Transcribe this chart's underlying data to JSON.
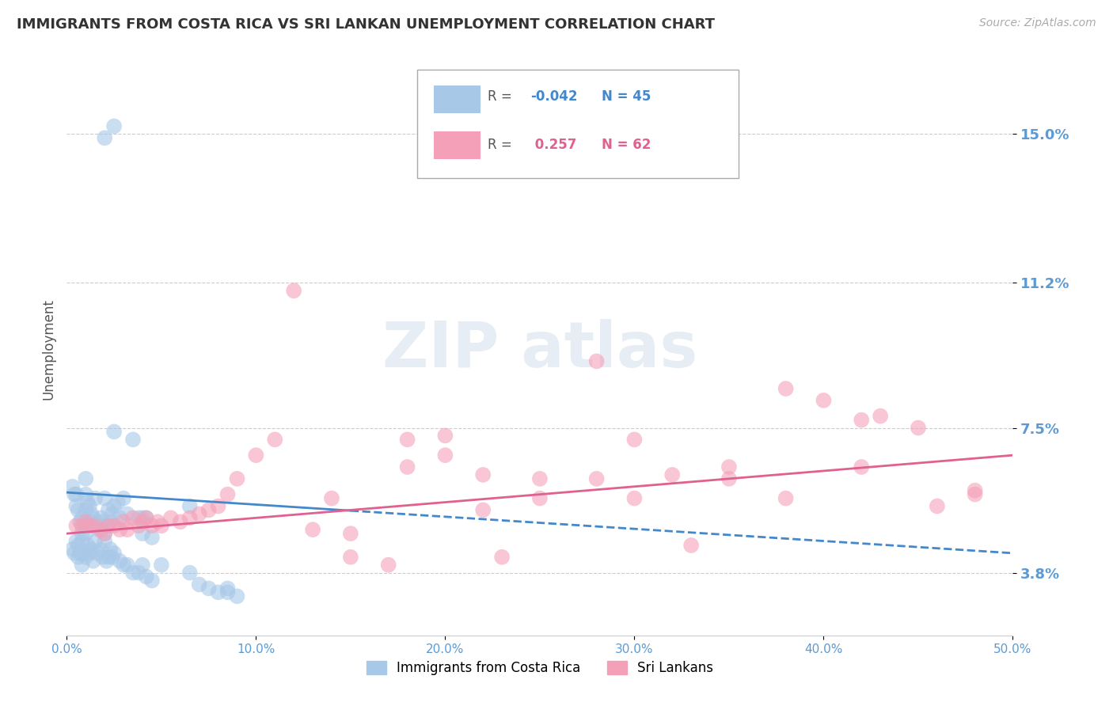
{
  "title": "IMMIGRANTS FROM COSTA RICA VS SRI LANKAN UNEMPLOYMENT CORRELATION CHART",
  "source": "Source: ZipAtlas.com",
  "xlabel": "",
  "ylabel": "Unemployment",
  "xlim": [
    0.0,
    0.5
  ],
  "ylim": [
    0.022,
    0.168
  ],
  "yticks": [
    0.038,
    0.075,
    0.112,
    0.15
  ],
  "ytick_labels": [
    "3.8%",
    "7.5%",
    "11.2%",
    "15.0%"
  ],
  "xticks": [
    0.0,
    0.1,
    0.2,
    0.3,
    0.4,
    0.5
  ],
  "xtick_labels": [
    "0.0%",
    "10.0%",
    "20.0%",
    "30.0%",
    "40.0%",
    "50.0%"
  ],
  "blue_color": "#a8c8e8",
  "pink_color": "#f4a0b8",
  "blue_line_color": "#4488cc",
  "pink_line_color": "#e06090",
  "axis_label_color": "#5b9bd5",
  "grid_color": "#cccccc",
  "blue_scatter_x": [
    0.02,
    0.025,
    0.003,
    0.004,
    0.005,
    0.005,
    0.006,
    0.007,
    0.008,
    0.008,
    0.009,
    0.01,
    0.01,
    0.01,
    0.011,
    0.012,
    0.012,
    0.013,
    0.014,
    0.015,
    0.015,
    0.016,
    0.017,
    0.018,
    0.019,
    0.02,
    0.02,
    0.021,
    0.022,
    0.023,
    0.024,
    0.025,
    0.025,
    0.027,
    0.028,
    0.03,
    0.032,
    0.035,
    0.038,
    0.04,
    0.04,
    0.042,
    0.045,
    0.065,
    0.085
  ],
  "blue_scatter_y": [
    0.149,
    0.152,
    0.06,
    0.058,
    0.058,
    0.055,
    0.054,
    0.051,
    0.052,
    0.048,
    0.05,
    0.062,
    0.058,
    0.054,
    0.056,
    0.055,
    0.051,
    0.053,
    0.052,
    0.057,
    0.05,
    0.051,
    0.049,
    0.052,
    0.051,
    0.057,
    0.048,
    0.05,
    0.054,
    0.051,
    0.053,
    0.074,
    0.055,
    0.056,
    0.052,
    0.057,
    0.053,
    0.072,
    0.052,
    0.052,
    0.048,
    0.052,
    0.047,
    0.055,
    0.034
  ],
  "blue_scatter_x2": [
    0.003,
    0.004,
    0.005,
    0.006,
    0.006,
    0.007,
    0.008,
    0.008,
    0.009,
    0.01,
    0.01,
    0.011,
    0.012,
    0.013,
    0.014,
    0.015,
    0.016,
    0.018,
    0.019,
    0.02,
    0.021,
    0.022,
    0.023,
    0.024,
    0.025,
    0.028,
    0.03,
    0.032,
    0.035,
    0.038,
    0.04,
    0.042,
    0.045,
    0.05,
    0.065,
    0.07,
    0.075,
    0.08,
    0.085,
    0.09
  ],
  "blue_scatter_y2": [
    0.044,
    0.043,
    0.046,
    0.045,
    0.042,
    0.043,
    0.046,
    0.04,
    0.043,
    0.048,
    0.042,
    0.045,
    0.043,
    0.044,
    0.041,
    0.046,
    0.043,
    0.044,
    0.042,
    0.046,
    0.041,
    0.042,
    0.044,
    0.042,
    0.043,
    0.041,
    0.04,
    0.04,
    0.038,
    0.038,
    0.04,
    0.037,
    0.036,
    0.04,
    0.038,
    0.035,
    0.034,
    0.033,
    0.033,
    0.032
  ],
  "pink_scatter_x": [
    0.005,
    0.008,
    0.01,
    0.012,
    0.015,
    0.018,
    0.02,
    0.022,
    0.025,
    0.028,
    0.03,
    0.032,
    0.035,
    0.038,
    0.04,
    0.042,
    0.045,
    0.048,
    0.05,
    0.055,
    0.06,
    0.065,
    0.07,
    0.075,
    0.08,
    0.085,
    0.09,
    0.1,
    0.11,
    0.12,
    0.13,
    0.14,
    0.15,
    0.18,
    0.2,
    0.22,
    0.25,
    0.28,
    0.3,
    0.32,
    0.35,
    0.38,
    0.4,
    0.42,
    0.45,
    0.2,
    0.25,
    0.3,
    0.35,
    0.18,
    0.22,
    0.15,
    0.17,
    0.23,
    0.33,
    0.43,
    0.48,
    0.38,
    0.28,
    0.42,
    0.48,
    0.46
  ],
  "pink_scatter_y": [
    0.05,
    0.05,
    0.051,
    0.05,
    0.05,
    0.049,
    0.048,
    0.05,
    0.05,
    0.049,
    0.051,
    0.049,
    0.052,
    0.05,
    0.051,
    0.052,
    0.05,
    0.051,
    0.05,
    0.052,
    0.051,
    0.052,
    0.053,
    0.054,
    0.055,
    0.058,
    0.062,
    0.068,
    0.072,
    0.11,
    0.049,
    0.057,
    0.048,
    0.065,
    0.073,
    0.063,
    0.062,
    0.092,
    0.072,
    0.063,
    0.065,
    0.057,
    0.082,
    0.065,
    0.075,
    0.068,
    0.057,
    0.057,
    0.062,
    0.072,
    0.054,
    0.042,
    0.04,
    0.042,
    0.045,
    0.078,
    0.059,
    0.085,
    0.062,
    0.077,
    0.058,
    0.055
  ],
  "blue_line_x0": 0.0,
  "blue_line_y0": 0.0585,
  "blue_line_x1": 0.5,
  "blue_line_y1": 0.043,
  "pink_line_x0": 0.0,
  "pink_line_y0": 0.048,
  "pink_line_x1": 0.5,
  "pink_line_y1": 0.068
}
